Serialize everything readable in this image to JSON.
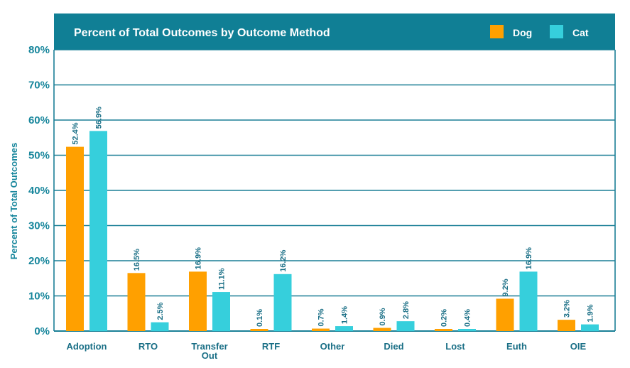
{
  "colors": {
    "header_bg": "#107f95",
    "grid": "#1a7f96",
    "axis_text": "#17869c",
    "dog": "#ffa000",
    "cat": "#36cfdc",
    "label": "#1a6f86"
  },
  "chart_data": {
    "type": "bar",
    "title": "Percent of Total Outcomes by Outcome Method",
    "ylabel": "Percent of Total Outcomes",
    "xlabel": "",
    "ylim": [
      0,
      80
    ],
    "yticks": [
      0,
      10,
      20,
      30,
      40,
      50,
      60,
      70,
      80
    ],
    "ytick_labels": [
      "0%",
      "10%",
      "20%",
      "30%",
      "40%",
      "50%",
      "60%",
      "70%",
      "80%"
    ],
    "grid": true,
    "legend_position": "top-right",
    "categories": [
      "Adoption",
      "RTO",
      "Transfer Out",
      "RTF",
      "Other",
      "Died",
      "Lost",
      "Euth",
      "OIE"
    ],
    "category_lines": [
      [
        "Adoption"
      ],
      [
        "RTO"
      ],
      [
        "Transfer",
        "Out"
      ],
      [
        "RTF"
      ],
      [
        "Other"
      ],
      [
        "Died"
      ],
      [
        "Lost"
      ],
      [
        "Euth"
      ],
      [
        "OIE"
      ]
    ],
    "series": [
      {
        "name": "Dog",
        "values": [
          52.4,
          16.5,
          16.9,
          0.1,
          0.7,
          0.9,
          0.2,
          9.2,
          3.2
        ],
        "labels": [
          "52.4%",
          "16.5%",
          "16.9%",
          "0.1%",
          "0.7%",
          "0.9%",
          "0.2%",
          "9.2%",
          "3.2%"
        ]
      },
      {
        "name": "Cat",
        "values": [
          56.9,
          2.5,
          11.1,
          16.2,
          1.4,
          2.8,
          0.4,
          16.9,
          1.9
        ],
        "labels": [
          "56.9%",
          "2.5%",
          "11.1%",
          "16.2%",
          "1.4%",
          "2.8%",
          "0.4%",
          "16.9%",
          "1.9%"
        ]
      }
    ]
  }
}
